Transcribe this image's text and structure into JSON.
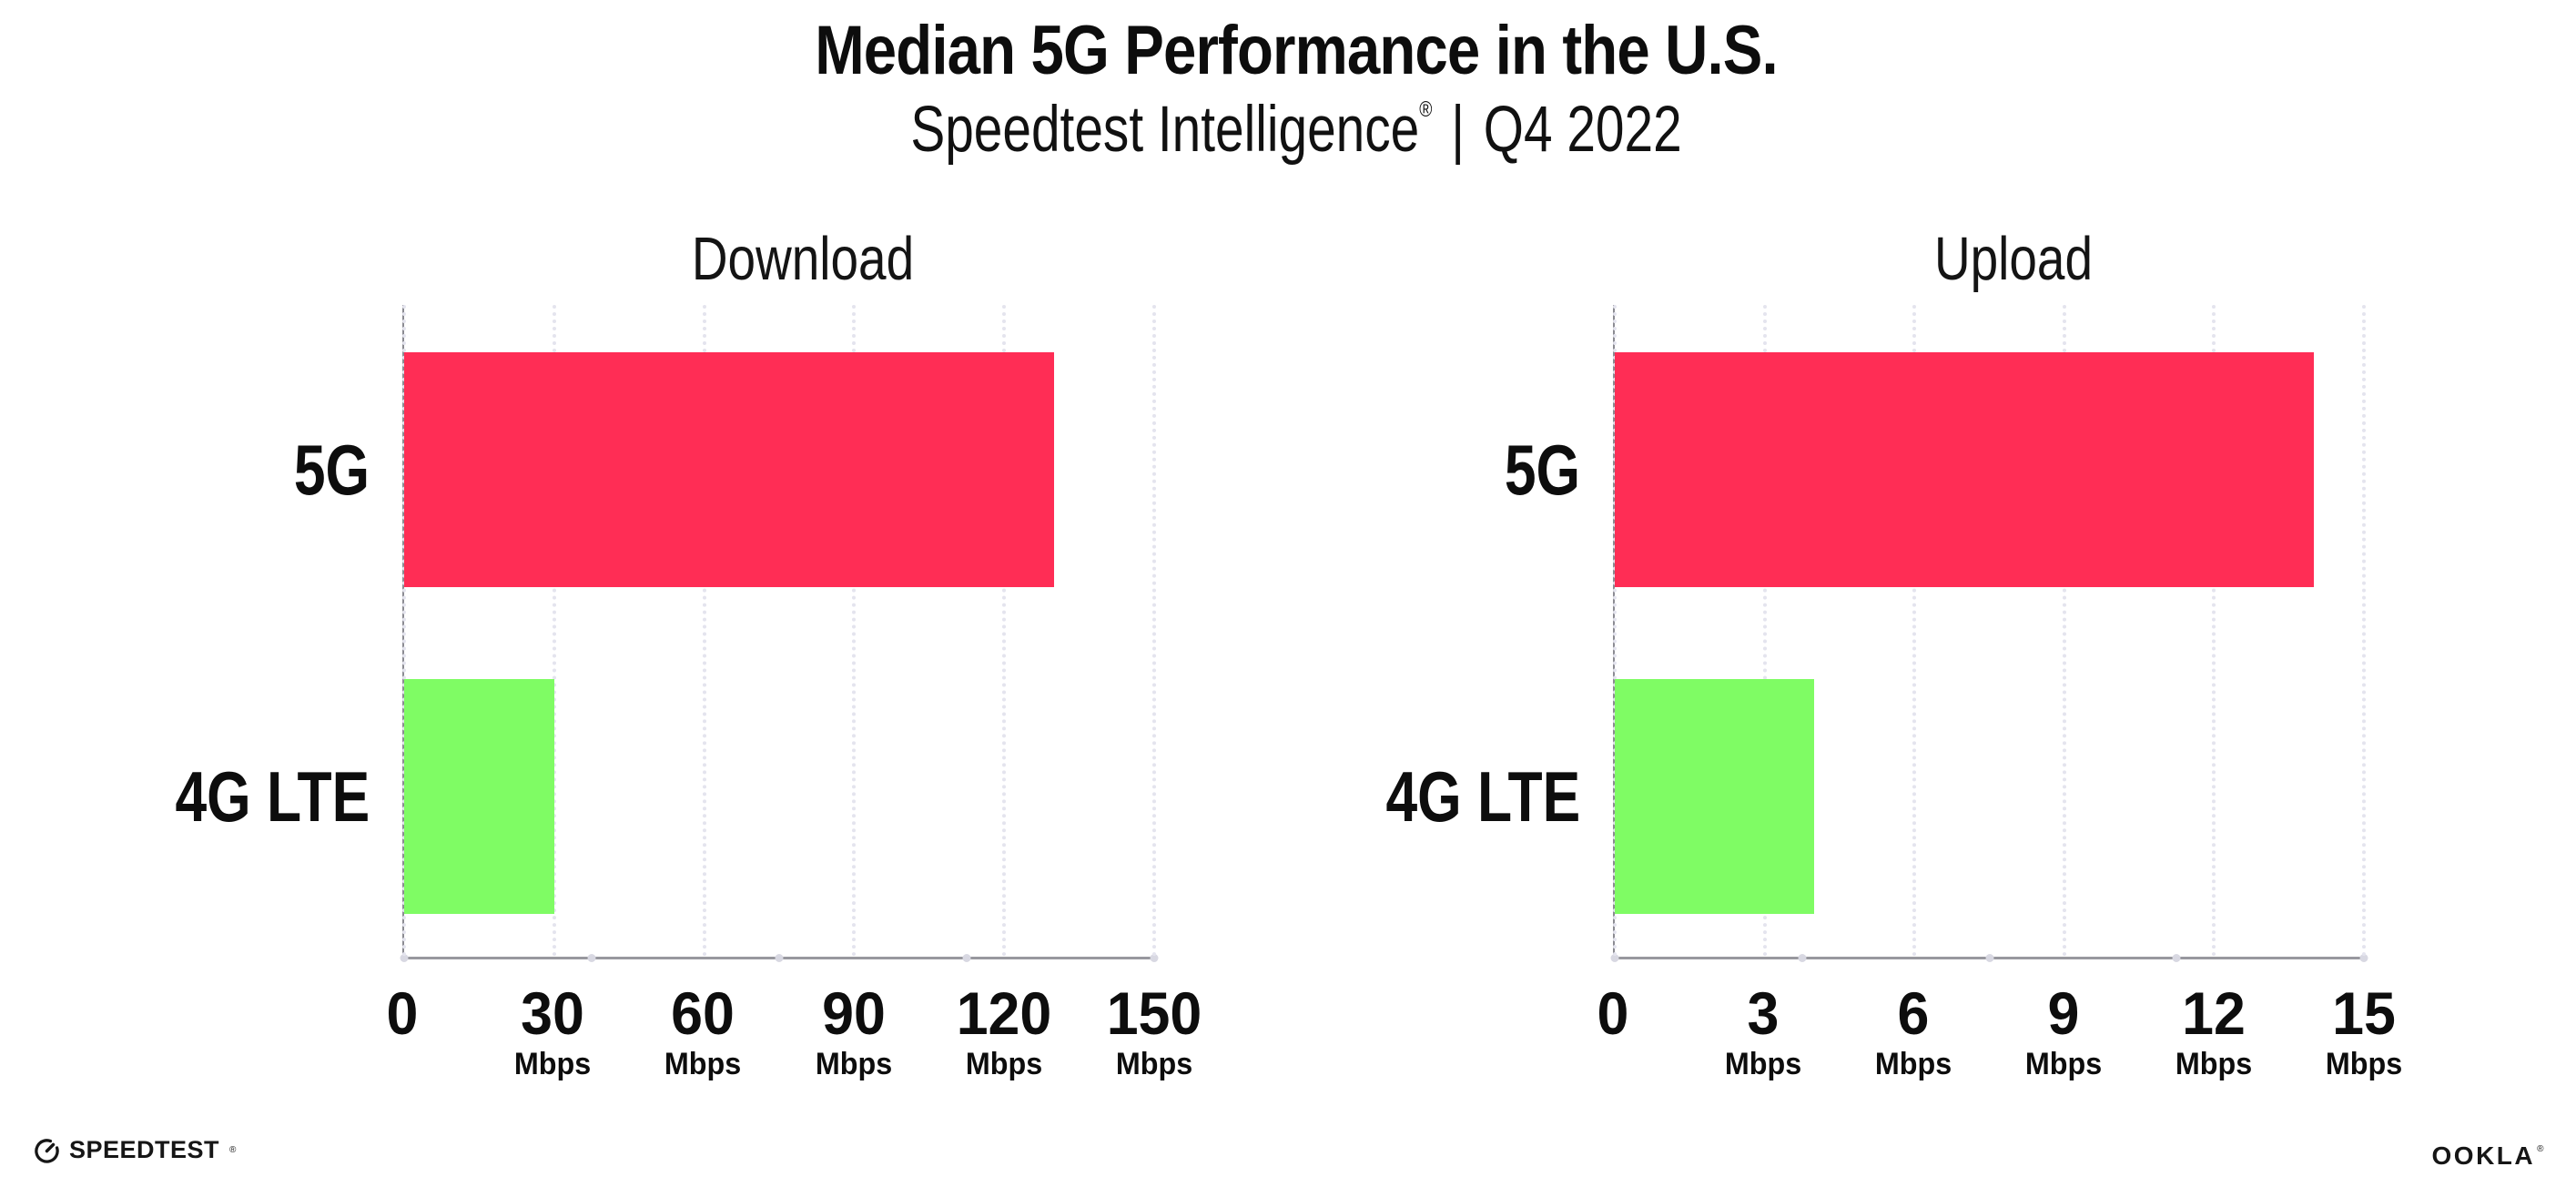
{
  "header": {
    "title": "Median 5G Performance in the U.S.",
    "subtitle": {
      "brand": "Speedtest Intelligence",
      "reg": "®",
      "separator": "|",
      "period": "Q4 2022"
    }
  },
  "chart_data": [
    {
      "type": "bar",
      "orientation": "horizontal",
      "title": "Download",
      "categories": [
        "5G",
        "4G LTE"
      ],
      "values": [
        130,
        30
      ],
      "unit": "Mbps",
      "xlim": [
        0,
        150
      ],
      "xticks": [
        0,
        30,
        60,
        90,
        120,
        150
      ],
      "bar_colors": [
        "#ff2d55",
        "#7ffc64"
      ],
      "grid": true,
      "legend": "none"
    },
    {
      "type": "bar",
      "orientation": "horizontal",
      "title": "Upload",
      "categories": [
        "5G",
        "4G LTE"
      ],
      "values": [
        14,
        4
      ],
      "unit": "Mbps",
      "xlim": [
        0,
        15
      ],
      "xticks": [
        0,
        3,
        6,
        9,
        12,
        15
      ],
      "bar_colors": [
        "#ff2d55",
        "#7ffc64"
      ],
      "grid": true,
      "legend": "none"
    }
  ],
  "colors": {
    "bar_5g": "#ff2d55",
    "bar_4g_lte": "#7ffc64",
    "gridline": "#e4e4ee",
    "axis": "#98989e",
    "text": "#0d0d0d"
  },
  "footer": {
    "speedtest": "SPEEDTEST",
    "speedtest_mark": "®",
    "ookla": "OOKLA",
    "ookla_mark": "®"
  }
}
